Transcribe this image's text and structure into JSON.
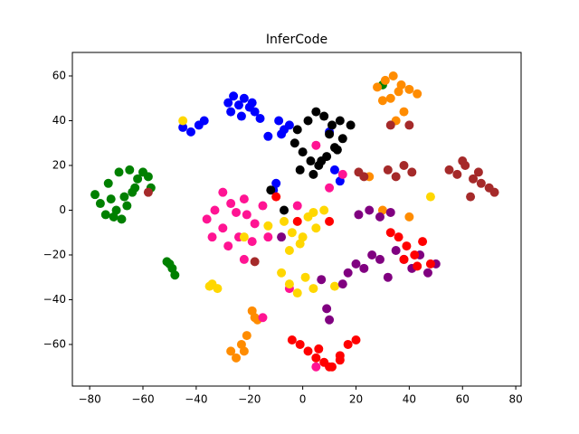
{
  "chart_data": {
    "type": "scatter",
    "title": "InferCode",
    "xlim": [
      -86.5,
      82
    ],
    "ylim": [
      -78.6,
      70.5
    ],
    "xticks": [
      {
        "value": -80,
        "label": "−80"
      },
      {
        "value": -60,
        "label": "−60"
      },
      {
        "value": -40,
        "label": "−40"
      },
      {
        "value": -20,
        "label": "−20"
      },
      0,
      20,
      40,
      60,
      80
    ],
    "yticks": [
      {
        "value": -60,
        "label": "−60"
      },
      {
        "value": -40,
        "label": "−40"
      },
      {
        "value": -20,
        "label": "−20"
      },
      0,
      20,
      40,
      60
    ],
    "series": [
      {
        "color": "#008000",
        "x": [
          -78,
          -76,
          -74,
          -72,
          -70,
          -68,
          -66,
          -64,
          -62,
          -60,
          -58,
          -57,
          -73,
          -69,
          -65,
          -71,
          -67,
          -63,
          -50,
          -49,
          -48,
          -51,
          30
        ],
        "values": [
          7,
          3,
          -2,
          5,
          0,
          -4,
          2,
          8,
          14,
          17,
          15,
          10,
          12,
          17,
          18,
          -3,
          6,
          10,
          -24,
          -26,
          -29,
          -23,
          56
        ]
      },
      {
        "color": "#0000ff",
        "x": [
          -28,
          -26,
          -24,
          -22,
          -20,
          -18,
          -16,
          -27,
          -23,
          -19,
          -45,
          -42,
          -39,
          -37,
          -9,
          -7,
          -5,
          -8,
          -13,
          -11,
          -10,
          12,
          14,
          10
        ],
        "values": [
          48,
          51,
          47,
          50,
          46,
          44,
          41,
          44,
          42,
          48,
          37,
          35,
          38,
          40,
          40,
          36,
          38,
          34,
          33,
          9,
          12,
          18,
          13,
          35
        ]
      },
      {
        "color": "#000000",
        "x": [
          -3,
          0,
          3,
          6,
          9,
          12,
          15,
          18,
          -2,
          2,
          5,
          8,
          11,
          14,
          -1,
          4,
          7,
          10,
          13,
          -12,
          -7
        ],
        "values": [
          30,
          26,
          22,
          20,
          24,
          28,
          32,
          38,
          36,
          40,
          44,
          42,
          38,
          40,
          18,
          16,
          22,
          34,
          27,
          9,
          0
        ]
      },
      {
        "color": "#ff8c00",
        "x": [
          28,
          31,
          34,
          37,
          40,
          43,
          33,
          36,
          38,
          30,
          35,
          -27,
          -25,
          -23,
          -21,
          -18,
          -19,
          -22,
          -17,
          30,
          40,
          25
        ],
        "values": [
          55,
          58,
          60,
          56,
          54,
          52,
          50,
          53,
          44,
          49,
          40,
          -63,
          -66,
          -60,
          -56,
          -48,
          -45,
          -63,
          -49,
          0,
          -3,
          15
        ]
      },
      {
        "color": "#a52a2a",
        "x": [
          55,
          58,
          61,
          64,
          67,
          70,
          72,
          60,
          63,
          66,
          32,
          35,
          38,
          41,
          21,
          23,
          -18,
          -58,
          33,
          40
        ],
        "values": [
          18,
          16,
          20,
          14,
          12,
          10,
          8,
          22,
          6,
          17,
          18,
          15,
          20,
          17,
          17,
          15,
          -23,
          8,
          38,
          38
        ]
      },
      {
        "color": "#ff1493",
        "x": [
          -36,
          -33,
          -30,
          -27,
          -24,
          -21,
          -18,
          -15,
          -34,
          -28,
          -22,
          -30,
          -25,
          -19,
          5,
          10,
          15,
          -2,
          -13,
          -22,
          -5,
          5,
          -15
        ],
        "values": [
          -4,
          0,
          -8,
          3,
          -12,
          -2,
          -6,
          2,
          -12,
          -16,
          5,
          8,
          -1,
          -14,
          29,
          10,
          16,
          2,
          -12,
          -22,
          -35,
          -70,
          -48
        ]
      },
      {
        "color": "#ffd700",
        "x": [
          -7,
          -4,
          -1,
          2,
          5,
          8,
          -5,
          0,
          4,
          -8,
          -5,
          -2,
          1,
          4,
          -34,
          -32,
          -35,
          -45,
          12,
          48,
          -13,
          -22
        ],
        "values": [
          -5,
          -10,
          -15,
          -3,
          -8,
          0,
          -18,
          -12,
          -1,
          -28,
          -33,
          -37,
          -30,
          -35,
          -33,
          -35,
          -34,
          40,
          -34,
          6,
          -7,
          -12
        ]
      },
      {
        "color": "#800080",
        "x": [
          17,
          20,
          23,
          26,
          29,
          32,
          35,
          38,
          41,
          44,
          47,
          50,
          21,
          25,
          29,
          33,
          9,
          10,
          7,
          -8,
          15
        ],
        "values": [
          -28,
          -24,
          -26,
          -20,
          -22,
          -30,
          -18,
          -22,
          -26,
          -20,
          -28,
          -24,
          -2,
          0,
          -3,
          -1,
          -44,
          -49,
          -31,
          -12,
          -33
        ]
      },
      {
        "color": "#ff0000",
        "x": [
          -4,
          -1,
          2,
          5,
          8,
          11,
          14,
          17,
          20,
          6,
          10,
          14,
          33,
          36,
          39,
          42,
          45,
          48,
          38,
          43,
          -10,
          10,
          -2
        ],
        "values": [
          -58,
          -60,
          -63,
          -66,
          -68,
          -70,
          -65,
          -60,
          -58,
          -62,
          -70,
          -67,
          -10,
          -12,
          -16,
          -20,
          -14,
          -24,
          -22,
          -25,
          6,
          -5,
          -5
        ]
      }
    ]
  }
}
